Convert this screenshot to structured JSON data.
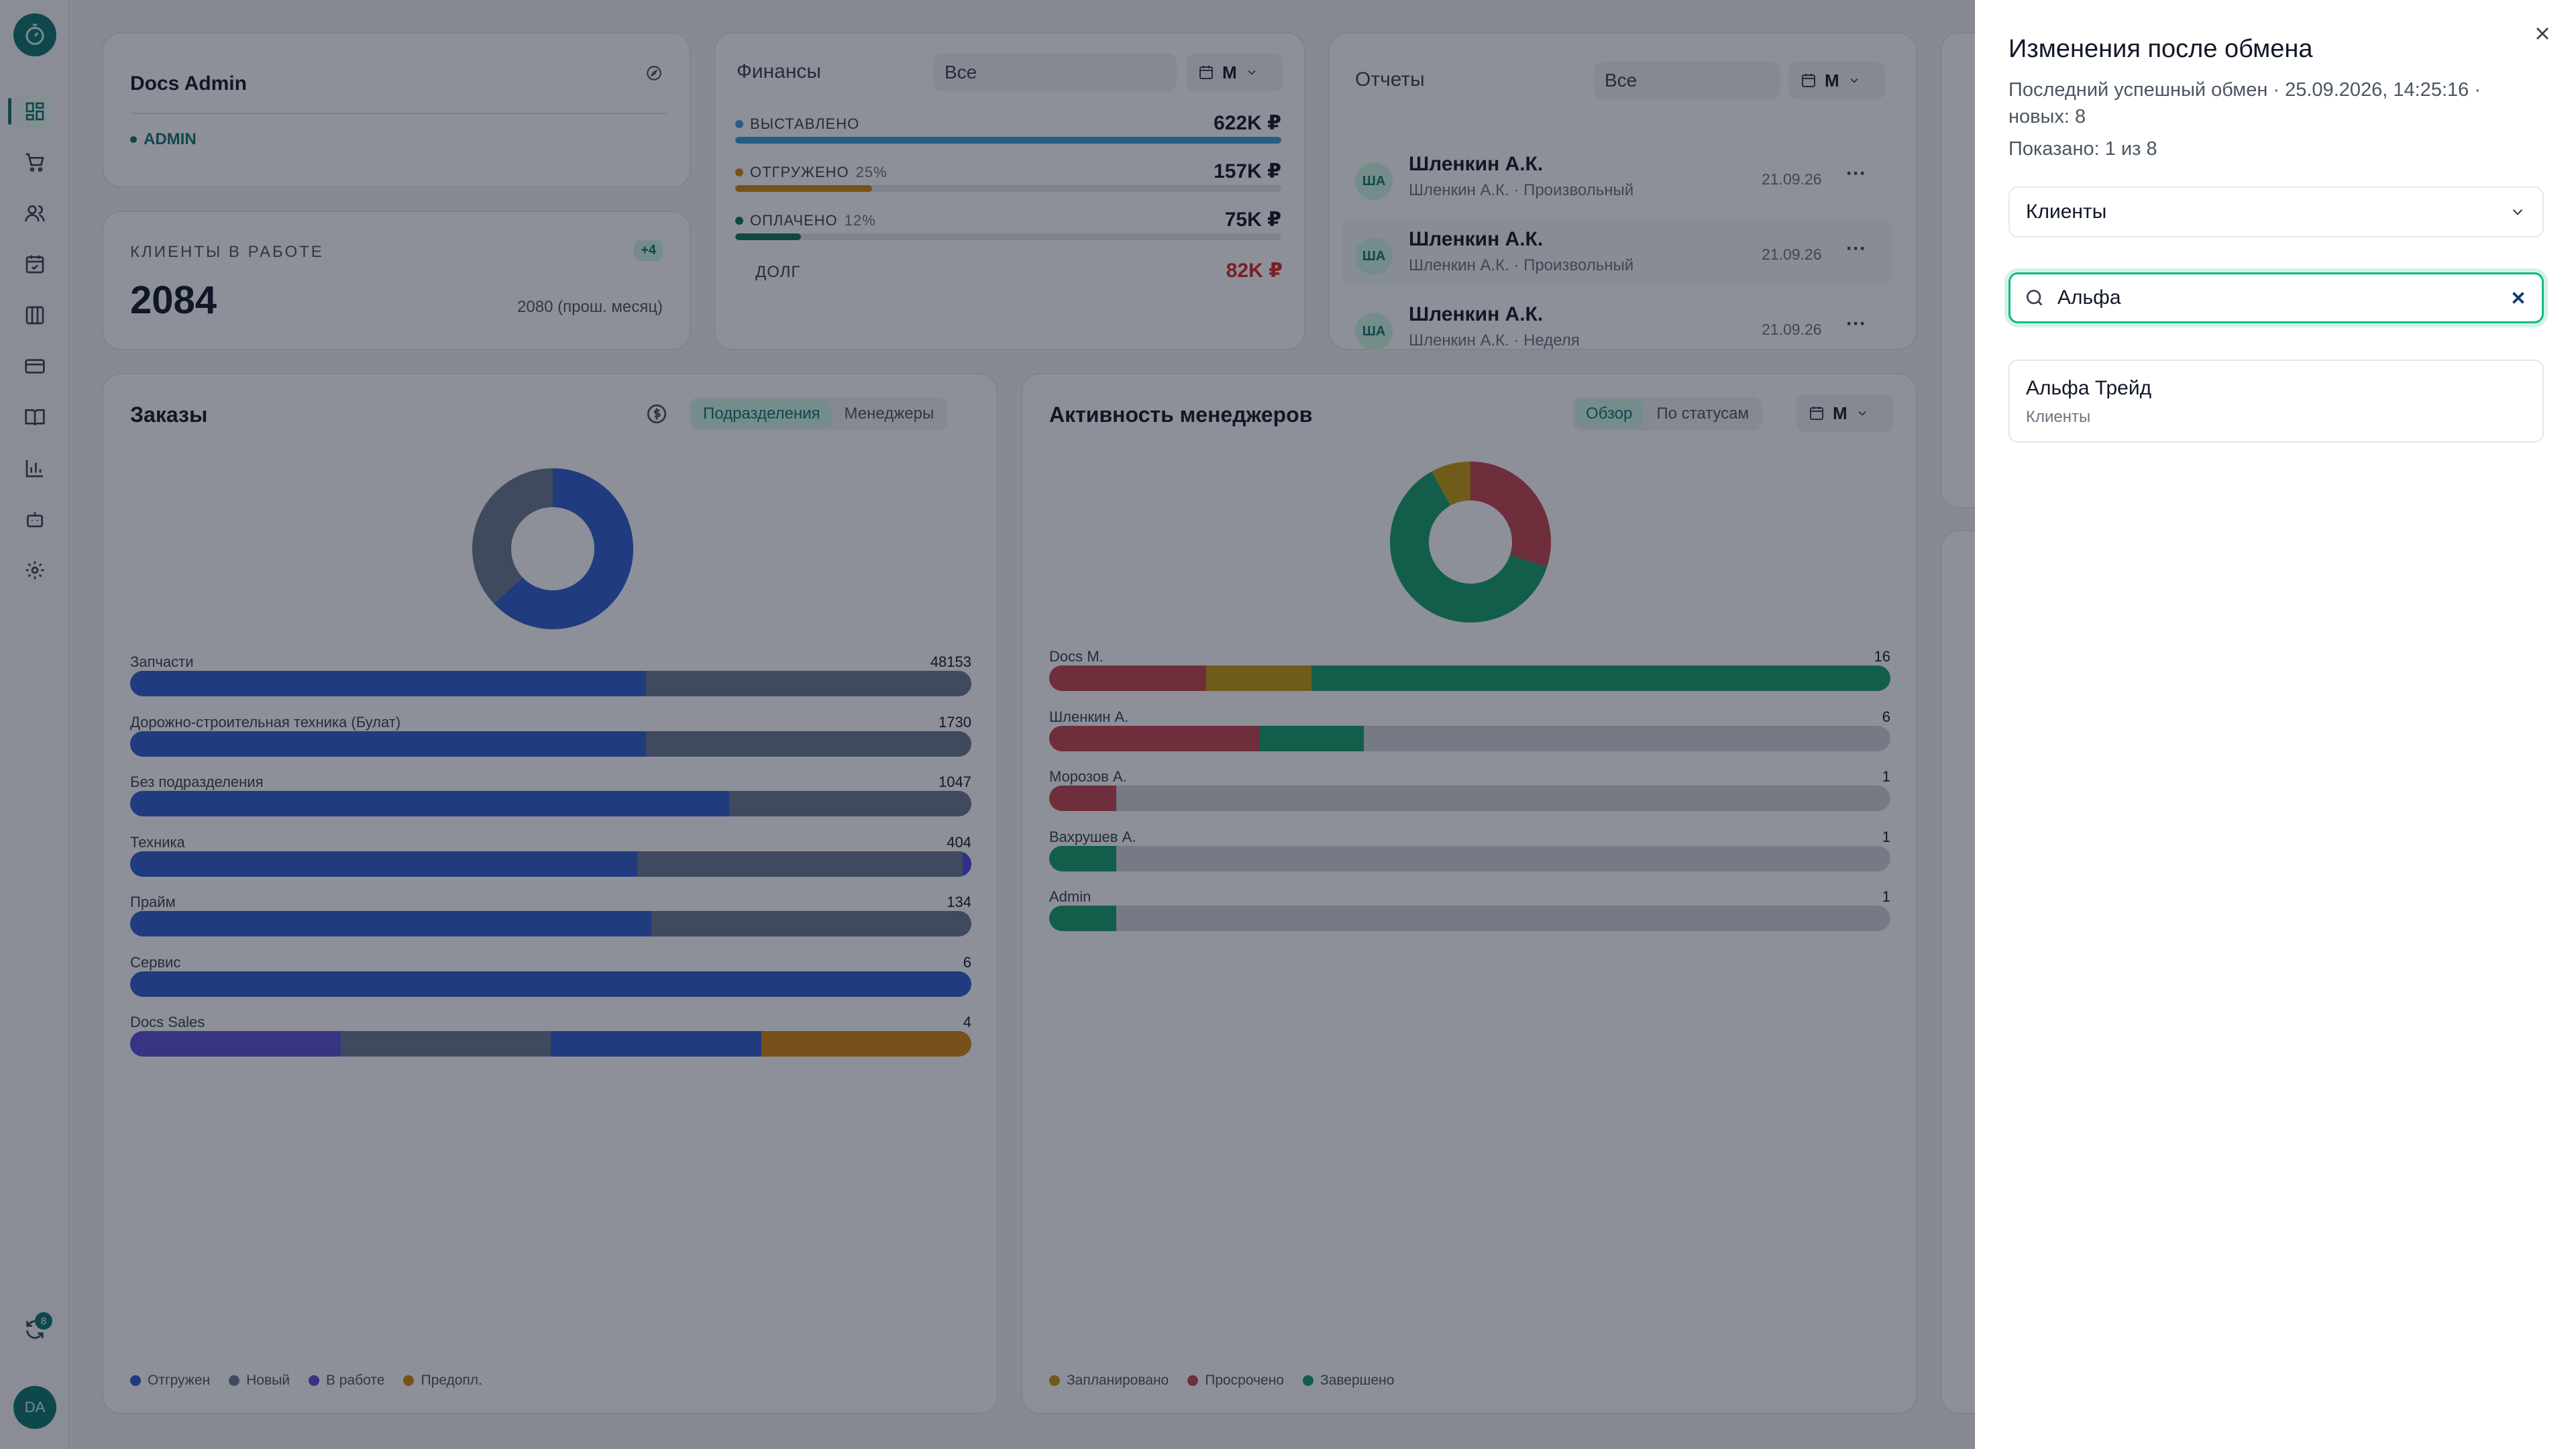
{
  "sidebar": {
    "logo_icon": "stopwatch-icon",
    "items": [
      {
        "icon": "dashboard-icon",
        "active": true
      },
      {
        "icon": "cart-icon"
      },
      {
        "icon": "users-icon"
      },
      {
        "icon": "calendar-check-icon"
      },
      {
        "icon": "columns-icon"
      },
      {
        "icon": "credit-card-icon"
      },
      {
        "icon": "book-icon"
      },
      {
        "icon": "bar-chart-icon"
      },
      {
        "icon": "bot-icon"
      },
      {
        "icon": "gear-icon"
      }
    ],
    "sync_badge": "8",
    "avatar": "DA"
  },
  "profile": {
    "name": "Docs Admin",
    "role": "ADMIN"
  },
  "clients": {
    "label": "КЛИЕНТЫ В РАБОТЕ",
    "badge": "+4",
    "value": "2084",
    "prev": "2080 (прош. месяц)"
  },
  "finance": {
    "title": "Финансы",
    "filter": "Все",
    "period": "М",
    "rows": [
      {
        "name": "ВЫСТАВЛЕНО",
        "pct": "",
        "amount": "622K ₽",
        "color": "#3b9dd8",
        "fill": 1.0
      },
      {
        "name": "ОТГРУЖЕНО",
        "pct": "25%",
        "amount": "157K ₽",
        "color": "#d4890f",
        "fill": 0.25
      },
      {
        "name": "ОПЛАЧЕНО",
        "pct": "12%",
        "amount": "75K ₽",
        "color": "#0f7a55",
        "fill": 0.12
      }
    ],
    "debt_label": "ДОЛГ",
    "debt_amount": "82K ₽"
  },
  "reports": {
    "title": "Отчеты",
    "filter": "Все",
    "period": "М",
    "rows": [
      {
        "initials": "ША",
        "name": "Шленкин А.К.",
        "sub": "Шленкин А.К. · Произвольный",
        "date": "21.09.26"
      },
      {
        "initials": "ША",
        "name": "Шленкин А.К.",
        "sub": "Шленкин А.К. · Произвольный",
        "date": "21.09.26"
      },
      {
        "initials": "ША",
        "name": "Шленкин А.К.",
        "sub": "Шленкин А.К. · Неделя",
        "date": "21.09.26"
      }
    ]
  },
  "orders": {
    "title": "Заказы",
    "tabs": [
      "Подразделения",
      "Менеджеры"
    ],
    "donut": [
      {
        "value": 0.63,
        "color": "#2e5fd0"
      },
      {
        "value": 0.37,
        "color": "#6b7a93"
      }
    ],
    "rows": [
      {
        "label": "Запчасти",
        "value": "48153",
        "segs": [
          [
            0.613,
            "#2e5fd0"
          ],
          [
            0.387,
            "#6b7a93"
          ]
        ]
      },
      {
        "label": "Дорожно-строительная техника (Булат)",
        "value": "1730",
        "segs": [
          [
            0.613,
            "#2e5fd0"
          ],
          [
            0.387,
            "#6b7a93"
          ]
        ]
      },
      {
        "label": "Без подразделения",
        "value": "1047",
        "segs": [
          [
            0.712,
            "#2e5fd0"
          ],
          [
            0.288,
            "#6b7a93"
          ]
        ]
      },
      {
        "label": "Техника",
        "value": "404",
        "segs": [
          [
            0.603,
            "#2e5fd0"
          ],
          [
            0.387,
            "#6b7a93"
          ],
          [
            0.01,
            "#4f46e5"
          ]
        ]
      },
      {
        "label": "Прайм",
        "value": "134",
        "segs": [
          [
            0.62,
            "#2e5fd0"
          ],
          [
            0.38,
            "#6b7a93"
          ]
        ]
      },
      {
        "label": "Сервис",
        "value": "6",
        "segs": [
          [
            1.0,
            "#2e5fd0"
          ]
        ]
      },
      {
        "label": "Docs Sales",
        "value": "4",
        "segs": [
          [
            0.25,
            "#5b4fd6"
          ],
          [
            0.25,
            "#6b7a93"
          ],
          [
            0.25,
            "#2e5fd0"
          ],
          [
            0.25,
            "#d4890f"
          ]
        ]
      }
    ],
    "legend": [
      {
        "label": "Отгружен",
        "color": "#2e5fd0"
      },
      {
        "label": "Новый",
        "color": "#6b7a93"
      },
      {
        "label": "В работе",
        "color": "#5b4fd6"
      },
      {
        "label": "Предопл.",
        "color": "#d4890f"
      }
    ]
  },
  "activity": {
    "title": "Активность менеджеров",
    "tabs": [
      "Обзор",
      "По статусам"
    ],
    "period": "М",
    "donut": [
      {
        "value": 0.3,
        "color": "#c5444d"
      },
      {
        "value": 0.62,
        "color": "#16a06c"
      },
      {
        "value": 0.08,
        "color": "#c59b10"
      }
    ],
    "rows": [
      {
        "label": "Docs M.",
        "value": "16",
        "segs": [
          [
            0.187,
            "#c5444d"
          ],
          [
            0.125,
            "#c59b10"
          ],
          [
            0.688,
            "#16a06c"
          ]
        ]
      },
      {
        "label": "Шленкин А.",
        "value": "6",
        "segs": [
          [
            0.25,
            "#c5444d"
          ],
          [
            0.124,
            "#16a06c"
          ]
        ]
      },
      {
        "label": "Морозов А.",
        "value": "1",
        "segs": [
          [
            0.08,
            "#c5444d"
          ]
        ]
      },
      {
        "label": "Вахрушев А.",
        "value": "1",
        "segs": [
          [
            0.08,
            "#16a06c"
          ]
        ]
      },
      {
        "label": "Admin",
        "value": "1",
        "segs": [
          [
            0.08,
            "#16a06c"
          ]
        ]
      }
    ],
    "legend": [
      {
        "label": "Запланировано",
        "color": "#c59b10"
      },
      {
        "label": "Просрочено",
        "color": "#c5444d"
      },
      {
        "label": "Завершено",
        "color": "#16a06c"
      }
    ]
  },
  "drawer": {
    "title": "Изменения после обмена",
    "subtitle": "Последний успешный обмен · 25.09.2026, 14:25:16 · новых: 8",
    "shown": "Показано: 1 из 8",
    "category_select": "Клиенты",
    "search_value": "Альфа",
    "results": [
      {
        "title": "Альфа Трейд",
        "subtitle": "Клиенты"
      }
    ]
  }
}
